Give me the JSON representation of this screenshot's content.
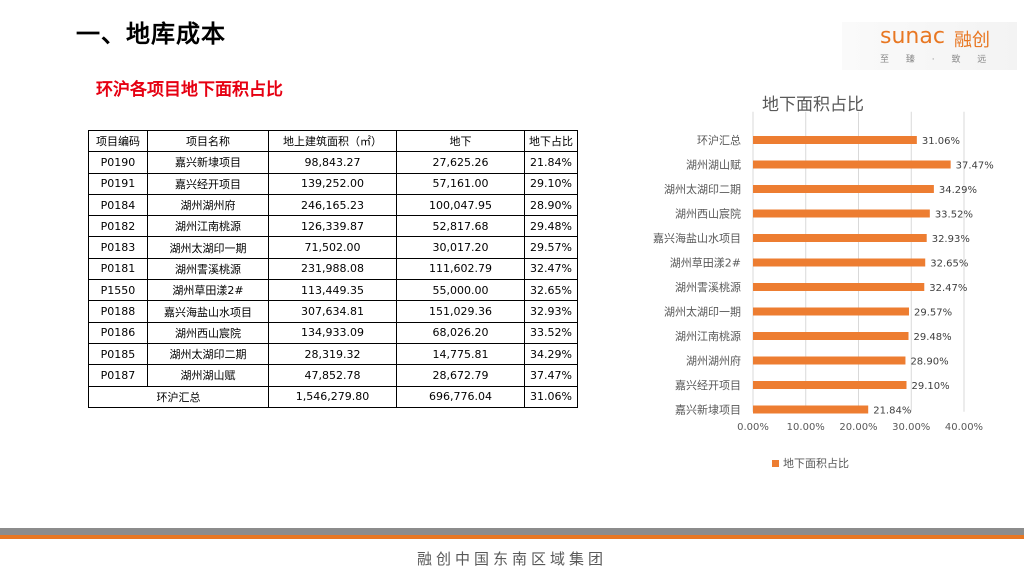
{
  "header": {
    "title": "一、地库成本",
    "subtitle": "环沪各项目地下面积占比"
  },
  "logo": {
    "brand": "SUNAC",
    "brand_cn": "融创",
    "slogan": "至 臻 · 致 远"
  },
  "table": {
    "columns": [
      "项目编码",
      "项目名称",
      "地上建筑面积（㎡）",
      "地下",
      "地下占比"
    ],
    "rows": [
      [
        "P0190",
        "嘉兴新埭项目",
        "98,843.27",
        "27,625.26",
        "21.84%"
      ],
      [
        "P0191",
        "嘉兴经开项目",
        "139,252.00",
        "57,161.00",
        "29.10%"
      ],
      [
        "P0184",
        "湖州湖州府",
        "246,165.23",
        "100,047.95",
        "28.90%"
      ],
      [
        "P0182",
        "湖州江南桃源",
        "126,339.87",
        "52,817.68",
        "29.48%"
      ],
      [
        "P0183",
        "湖州太湖印一期",
        "71,502.00",
        "30,017.20",
        "29.57%"
      ],
      [
        "P0181",
        "湖州霅溪桃源",
        "231,988.08",
        "111,602.79",
        "32.47%"
      ],
      [
        "P1550",
        "湖州草田漾2#",
        "113,449.35",
        "55,000.00",
        "32.65%"
      ],
      [
        "P0188",
        "嘉兴海盐山水项目",
        "307,634.81",
        "151,029.36",
        "32.93%"
      ],
      [
        "P0186",
        "湖州西山宸院",
        "134,933.09",
        "68,026.20",
        "33.52%"
      ],
      [
        "P0185",
        "湖州太湖印二期",
        "28,319.32",
        "14,775.81",
        "34.29%"
      ],
      [
        "P0187",
        "湖州湖山赋",
        "47,852.78",
        "28,672.79",
        "37.47%"
      ]
    ],
    "total": [
      "环沪汇总",
      "1,546,279.80",
      "696,776.04",
      "31.06%"
    ]
  },
  "chart_data": {
    "type": "bar",
    "orientation": "horizontal",
    "title": "地下面积占比",
    "categories": [
      "环沪汇总",
      "湖州湖山赋",
      "湖州太湖印二期",
      "湖州西山宸院",
      "嘉兴海盐山水项目",
      "湖州草田漾2#",
      "湖州霅溪桃源",
      "湖州太湖印一期",
      "湖州江南桃源",
      "湖州湖州府",
      "嘉兴经开项目",
      "嘉兴新埭项目"
    ],
    "series": [
      {
        "name": "地下面积占比",
        "values": [
          31.06,
          37.47,
          34.29,
          33.52,
          32.93,
          32.65,
          32.47,
          29.57,
          29.48,
          28.9,
          29.1,
          21.84
        ],
        "labels": [
          "31.06%",
          "37.47%",
          "34.29%",
          "33.52%",
          "32.93%",
          "32.65%",
          "32.47%",
          "29.57%",
          "29.48%",
          "28.90%",
          "29.10%",
          "21.84%"
        ]
      }
    ],
    "xlim": [
      0,
      40
    ],
    "xticks": [
      "0.00%",
      "10.00%",
      "20.00%",
      "30.00%",
      "40.00%"
    ],
    "legend_position": "bottom",
    "grid": true,
    "color": "#ed7d31"
  },
  "footer": {
    "text": "融创中国东南区域集团"
  }
}
